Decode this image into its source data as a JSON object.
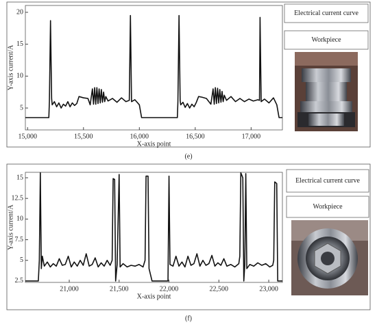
{
  "chart_data": [
    {
      "type": "line",
      "xlabel": "X-axis point",
      "ylabel": "Y-axis current/A",
      "caption": "(e)",
      "annotations": [
        "Electrical current curve",
        "Workpiece"
      ],
      "color": "#111111",
      "xlim": [
        14980,
        17280
      ],
      "ylim": [
        1.57,
        21.07
      ],
      "xticks": [
        {
          "value": 15000,
          "label": "15,000"
        },
        {
          "value": 15500,
          "label": "15,500"
        },
        {
          "value": 16000,
          "label": "16,000"
        },
        {
          "value": 16500,
          "label": "16,500"
        },
        {
          "value": 17000,
          "label": "17,000"
        }
      ],
      "yticks": [
        5,
        10,
        15,
        20
      ],
      "x": [
        14980,
        15190,
        15195,
        15205,
        15215,
        15220,
        15240,
        15260,
        15280,
        15300,
        15320,
        15340,
        15360,
        15380,
        15400,
        15420,
        15440,
        15460,
        15500,
        15540,
        15560,
        15580,
        15590,
        15600,
        15610,
        15620,
        15630,
        15640,
        15650,
        15660,
        15670,
        15680,
        15690,
        15700,
        15720,
        15760,
        15800,
        15840,
        15880,
        15910,
        15920,
        15930,
        15960,
        16000,
        16020,
        16030,
        16340,
        16345,
        16355,
        16365,
        16370,
        16390,
        16410,
        16430,
        16450,
        16470,
        16490,
        16510,
        16530,
        16560,
        16600,
        16640,
        16660,
        16670,
        16680,
        16690,
        16700,
        16710,
        16720,
        16730,
        16740,
        16750,
        16760,
        16780,
        16820,
        16860,
        16900,
        16940,
        16980,
        17020,
        17060,
        17075,
        17080,
        17090,
        17120,
        17160,
        17200,
        17230,
        17250,
        17260,
        17280
      ],
      "values": [
        3.5,
        3.5,
        6.0,
        18.7,
        6.5,
        5.5,
        6.0,
        5.2,
        5.8,
        5.0,
        5.6,
        5.3,
        6.0,
        5.2,
        5.8,
        5.4,
        5.7,
        6.8,
        6.6,
        6.5,
        5.5,
        8.0,
        5.6,
        8.2,
        5.6,
        8.2,
        5.7,
        8.0,
        5.8,
        7.9,
        5.9,
        7.5,
        6.0,
        6.8,
        6.1,
        6.5,
        5.9,
        6.6,
        6.0,
        6.2,
        19.5,
        6.0,
        6.3,
        5.5,
        3.5,
        3.5,
        3.5,
        6.0,
        19.5,
        6.2,
        5.5,
        5.9,
        5.1,
        5.7,
        5.0,
        5.6,
        5.2,
        5.9,
        6.8,
        6.7,
        6.5,
        5.6,
        8.0,
        5.6,
        8.2,
        5.7,
        8.1,
        5.8,
        7.9,
        5.9,
        7.6,
        6.0,
        7.0,
        6.2,
        6.8,
        6.0,
        6.5,
        6.0,
        6.4,
        6.1,
        6.3,
        6.2,
        19.2,
        6.0,
        6.4,
        5.8,
        6.6,
        5.5,
        3.5,
        3.5,
        3.5
      ]
    },
    {
      "type": "line",
      "xlabel": "X-axis point",
      "ylabel": "Y-axis current/A",
      "caption": "(f)",
      "annotations": [
        "Electrical current curve",
        "Workpiece"
      ],
      "color": "#111111",
      "xlim": [
        20560,
        23137
      ],
      "ylim": [
        2.33,
        15.66
      ],
      "xticks": [
        {
          "value": 21000,
          "label": "21,000"
        },
        {
          "value": 21500,
          "label": "21,500"
        },
        {
          "value": 22000,
          "label": "22,000"
        },
        {
          "value": 22500,
          "label": "22,500"
        },
        {
          "value": 23000,
          "label": "23,000"
        }
      ],
      "yticks": [
        2.5,
        5,
        7.5,
        10,
        12.5,
        15
      ],
      "x": [
        20560,
        20690,
        20700,
        20710,
        20720,
        20730,
        20750,
        20780,
        20810,
        20840,
        20870,
        20900,
        20930,
        20960,
        20990,
        21020,
        21050,
        21080,
        21110,
        21140,
        21170,
        21200,
        21230,
        21260,
        21290,
        21320,
        21350,
        21380,
        21410,
        21430,
        21440,
        21455,
        21465,
        21480,
        21500,
        21510,
        21540,
        21580,
        21620,
        21660,
        21700,
        21740,
        21760,
        21770,
        21790,
        21800,
        21830,
        21990,
        22000,
        22010,
        22040,
        22070,
        22100,
        22130,
        22160,
        22190,
        22220,
        22250,
        22280,
        22310,
        22340,
        22370,
        22400,
        22430,
        22460,
        22490,
        22520,
        22550,
        22580,
        22620,
        22660,
        22700,
        22710,
        22720,
        22740,
        22750,
        22760,
        22770,
        22780,
        22810,
        22850,
        22890,
        22930,
        22970,
        23010,
        23040,
        23050,
        23060,
        23080,
        23090,
        23137
      ],
      "values": [
        2.5,
        2.5,
        5.0,
        15.6,
        4.0,
        5.5,
        4.3,
        4.8,
        4.2,
        4.6,
        4.3,
        5.2,
        4.4,
        4.5,
        5.5,
        4.2,
        4.8,
        4.3,
        5.0,
        4.4,
        5.8,
        4.3,
        4.5,
        5.3,
        4.2,
        4.7,
        4.3,
        5.0,
        4.4,
        5.0,
        14.9,
        14.8,
        2.5,
        4.5,
        15.4,
        4.2,
        4.6,
        4.2,
        4.4,
        4.3,
        4.5,
        4.2,
        5.0,
        15.2,
        15.2,
        4.0,
        2.5,
        2.5,
        15.2,
        4.5,
        4.3,
        5.5,
        4.3,
        4.8,
        4.2,
        5.5,
        4.4,
        4.6,
        5.8,
        4.3,
        5.0,
        4.4,
        4.6,
        5.6,
        4.3,
        4.7,
        4.4,
        5.2,
        4.3,
        4.5,
        4.2,
        4.6,
        5.5,
        15.6,
        15.0,
        2.5,
        4.5,
        15.5,
        4.0,
        4.5,
        4.3,
        4.7,
        4.4,
        4.6,
        4.2,
        4.4,
        5.0,
        14.5,
        14.3,
        2.5,
        2.5
      ]
    }
  ]
}
